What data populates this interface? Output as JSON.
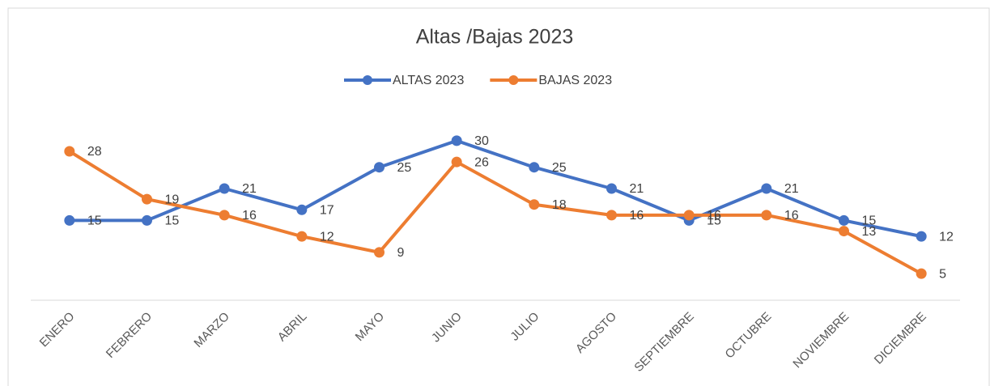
{
  "chart_data": {
    "type": "line",
    "title": "Altas /Bajas 2023",
    "categories": [
      "ENERO",
      "FEBRERO",
      "MARZO",
      "ABRIL",
      "MAYO",
      "JUNIO",
      "JULIO",
      "AGOSTO",
      "SEPTIEMBRE",
      "OCTUBRE",
      "NOVIEMBRE",
      "DICIEMBRE"
    ],
    "series": [
      {
        "name": "ALTAS 2023",
        "color": "#4472c4",
        "values": [
          15,
          15,
          21,
          17,
          25,
          30,
          25,
          21,
          15,
          21,
          15,
          12
        ]
      },
      {
        "name": "BAJAS 2023",
        "color": "#ed7d31",
        "values": [
          28,
          19,
          16,
          12,
          9,
          26,
          18,
          16,
          16,
          16,
          13,
          5
        ]
      }
    ],
    "ylim": [
      0,
      35
    ],
    "legend": "top"
  }
}
